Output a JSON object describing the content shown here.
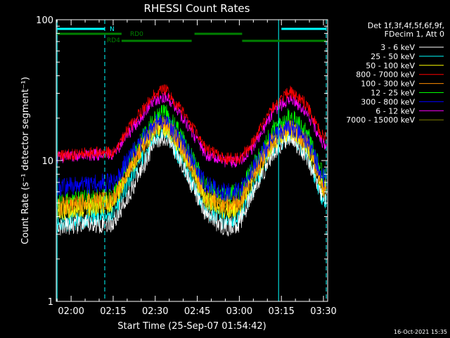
{
  "chart_data": {
    "type": "line",
    "title": "RHESSI Count Rates",
    "xlabel": "Start Time (25-Sep-07 01:54:42)",
    "ylabel": "Count Rate (s⁻¹ detector segment⁻¹)",
    "x_unit": "time",
    "xlim": [
      "01:54:42",
      "03:31:30"
    ],
    "ylim": [
      1,
      100
    ],
    "y_scale": "log",
    "x_ticks": [
      "02:00",
      "02:15",
      "02:30",
      "02:45",
      "03:00",
      "03:15",
      "03:30"
    ],
    "y_ticks": [
      "1",
      "10",
      "100"
    ],
    "legend_position": "right",
    "legend_header": [
      "Det 1f,3f,4f,5f,6f,9f,",
      "FDecim 1, Att 0"
    ],
    "date_stamp": "16-Oct-2021 15:35",
    "background": "#000000",
    "axis_color": "#ffffff",
    "series": [
      {
        "name": "3 - 6 keV",
        "color": "#ffffff",
        "x": [
          "01:56",
          "02:05",
          "02:15",
          "02:22",
          "02:30",
          "02:34",
          "02:40",
          "02:48",
          "02:55",
          "03:00",
          "03:05",
          "03:12",
          "03:18",
          "03:24",
          "03:30"
        ],
        "y": [
          3.4,
          3.5,
          3.6,
          6.5,
          14.0,
          15.0,
          9.0,
          4.2,
          3.3,
          3.6,
          6.0,
          11.5,
          15.0,
          11.0,
          5.5
        ]
      },
      {
        "name": "6 - 12 keV",
        "color": "#ff00ff",
        "x": [
          "01:56",
          "02:05",
          "02:15",
          "02:22",
          "02:30",
          "02:34",
          "02:40",
          "02:48",
          "02:55",
          "03:00",
          "03:05",
          "03:12",
          "03:18",
          "03:24",
          "03:30"
        ],
        "y": [
          10.5,
          11.0,
          11.0,
          17.0,
          27.0,
          28.5,
          20.0,
          11.0,
          9.8,
          9.8,
          12.5,
          22.0,
          28.0,
          22.0,
          13.0
        ]
      },
      {
        "name": "12 - 25 keV",
        "color": "#00ff00",
        "x": [
          "01:56",
          "02:05",
          "02:15",
          "02:22",
          "02:30",
          "02:34",
          "02:40",
          "02:48",
          "02:55",
          "03:00",
          "03:05",
          "03:12",
          "03:18",
          "03:24",
          "03:30"
        ],
        "y": [
          5.0,
          5.3,
          5.5,
          11.0,
          20.5,
          21.5,
          14.0,
          6.5,
          5.6,
          5.9,
          9.0,
          16.5,
          20.5,
          16.0,
          7.5
        ]
      },
      {
        "name": "25 - 50 keV",
        "color": "#00ffff",
        "x": [
          "01:56",
          "02:05",
          "02:15",
          "02:22",
          "02:30",
          "02:34",
          "02:40",
          "02:48",
          "02:55",
          "03:00",
          "03:05",
          "03:12",
          "03:18",
          "03:24",
          "03:30"
        ],
        "y": [
          3.6,
          3.8,
          4.2,
          8.0,
          15.0,
          15.5,
          9.5,
          4.5,
          3.7,
          3.9,
          6.5,
          12.0,
          15.5,
          11.5,
          5.2
        ]
      },
      {
        "name": "50 - 100 keV",
        "color": "#ffff00",
        "x": [
          "01:56",
          "02:05",
          "02:15",
          "02:22",
          "02:30",
          "02:34",
          "02:40",
          "02:48",
          "02:55",
          "03:00",
          "03:05",
          "03:12",
          "03:18",
          "03:24",
          "03:30"
        ],
        "y": [
          4.4,
          4.6,
          5.0,
          9.5,
          17.0,
          17.5,
          11.5,
          5.3,
          4.4,
          4.7,
          7.5,
          13.5,
          16.5,
          13.0,
          6.3
        ]
      },
      {
        "name": "100 - 300 keV",
        "color": "#ff8c00",
        "x": [
          "01:56",
          "02:05",
          "02:15",
          "02:22",
          "02:30",
          "02:34",
          "02:40",
          "02:48",
          "02:55",
          "03:00",
          "03:05",
          "03:12",
          "03:18",
          "03:24",
          "03:30"
        ],
        "y": [
          4.7,
          5.0,
          5.4,
          10.0,
          17.5,
          18.0,
          12.0,
          5.6,
          4.8,
          5.0,
          8.0,
          14.0,
          17.0,
          13.5,
          6.6
        ]
      },
      {
        "name": "300 - 800 keV",
        "color": "#0000ff",
        "x": [
          "01:56",
          "02:05",
          "02:15",
          "02:22",
          "02:30",
          "02:34",
          "02:40",
          "02:48",
          "02:55",
          "03:00",
          "03:05",
          "03:12",
          "03:18",
          "03:24",
          "03:30"
        ],
        "y": [
          6.5,
          6.7,
          7.0,
          11.5,
          18.5,
          19.0,
          13.0,
          6.8,
          5.9,
          6.0,
          9.0,
          14.5,
          17.5,
          14.0,
          7.5
        ]
      },
      {
        "name": "800 - 7000 keV",
        "color": "#ff0000",
        "x": [
          "01:56",
          "02:05",
          "02:15",
          "02:22",
          "02:30",
          "02:34",
          "02:40",
          "02:48",
          "02:55",
          "03:00",
          "03:05",
          "03:12",
          "03:18",
          "03:24",
          "03:30"
        ],
        "y": [
          10.8,
          11.2,
          11.5,
          18.5,
          30.5,
          32.0,
          22.0,
          12.0,
          10.3,
          10.3,
          13.5,
          24.0,
          31.0,
          25.0,
          14.5
        ]
      },
      {
        "name": "7000 - 15000 keV",
        "color": "#808000",
        "x": [
          "01:56",
          "02:05",
          "02:15",
          "02:22",
          "02:30",
          "02:34",
          "02:40",
          "02:48",
          "02:55",
          "03:00",
          "03:05",
          "03:12",
          "03:18",
          "03:24",
          "03:30"
        ],
        "y": [
          4.5,
          4.7,
          5.1,
          9.6,
          17.2,
          17.8,
          11.8,
          5.4,
          4.6,
          4.8,
          7.7,
          13.7,
          16.8,
          13.2,
          6.4
        ]
      }
    ],
    "flag_bars": [
      {
        "label": "N",
        "color": "#00ffff",
        "segments": [
          [
            "01:55",
            "02:12"
          ],
          [
            "03:15",
            "03:31"
          ]
        ]
      },
      {
        "label": "RD0",
        "color": "#008000",
        "segments": [
          [
            "01:55",
            "02:18"
          ],
          [
            "02:44",
            "03:01"
          ]
        ]
      },
      {
        "label": "RD4",
        "color": "#008000",
        "segments": [
          [
            "02:18",
            "02:43"
          ],
          [
            "03:01",
            "03:31"
          ]
        ]
      }
    ],
    "vertical_markers": [
      {
        "time": "01:55",
        "style": "solid",
        "color": "#00ffff"
      },
      {
        "time": "02:12",
        "style": "dashed",
        "color": "#00ffff"
      },
      {
        "time": "03:14",
        "style": "solid",
        "color": "#00ffff"
      },
      {
        "time": "03:31",
        "style": "dashed",
        "color": "#00ffff"
      }
    ]
  }
}
